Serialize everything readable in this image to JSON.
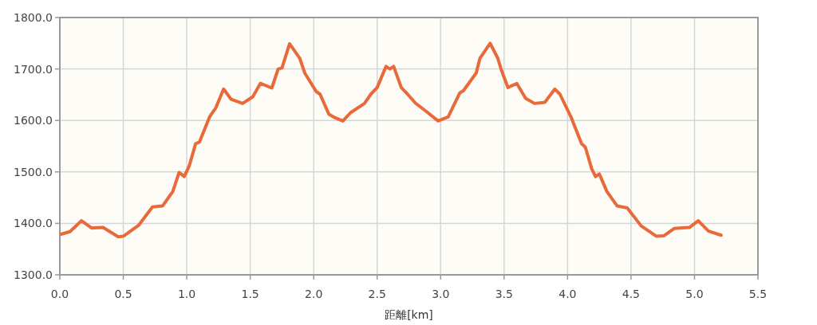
{
  "chart_data": {
    "type": "line",
    "xlabel": "距離[km]",
    "x": [
      0.01,
      0.08,
      0.17,
      0.25,
      0.34,
      0.46,
      0.5,
      0.62,
      0.73,
      0.81,
      0.89,
      0.94,
      0.98,
      1.02,
      1.07,
      1.1,
      1.18,
      1.23,
      1.29,
      1.35,
      1.44,
      1.52,
      1.58,
      1.67,
      1.72,
      1.75,
      1.81,
      1.89,
      1.93,
      2.02,
      2.05,
      2.12,
      2.17,
      2.23,
      2.29,
      2.4,
      2.45,
      2.5,
      2.57,
      2.6,
      2.63,
      2.69,
      2.74,
      2.8,
      2.89,
      2.98,
      3.06,
      3.15,
      3.18,
      3.28,
      3.31,
      3.39,
      3.45,
      3.48,
      3.53,
      3.6,
      3.67,
      3.74,
      3.82,
      3.9,
      3.94,
      4.03,
      4.11,
      4.14,
      4.19,
      4.22,
      4.25,
      4.31,
      4.39,
      4.47,
      4.58,
      4.7,
      4.76,
      4.84,
      4.96,
      5.03,
      5.11,
      5.21
    ],
    "series": [
      {
        "color": "#e8693a",
        "values": [
          1379,
          1384,
          1405,
          1391,
          1392,
          1374,
          1375,
          1396,
          1432,
          1434,
          1462,
          1499,
          1491,
          1512,
          1555,
          1558,
          1607,
          1625,
          1661,
          1641,
          1633,
          1646,
          1672,
          1663,
          1700,
          1702,
          1749,
          1721,
          1692,
          1656,
          1651,
          1612,
          1605,
          1599,
          1615,
          1633,
          1651,
          1664,
          1705,
          1700,
          1705,
          1664,
          1651,
          1634,
          1617,
          1599,
          1607,
          1653,
          1658,
          1692,
          1721,
          1750,
          1721,
          1697,
          1664,
          1672,
          1643,
          1633,
          1635,
          1661,
          1651,
          1605,
          1555,
          1548,
          1506,
          1491,
          1496,
          1462,
          1434,
          1430,
          1395,
          1375,
          1376,
          1390,
          1392,
          1405,
          1385,
          1377
        ]
      }
    ],
    "xlim": [
      0,
      5.5
    ],
    "ylim": [
      1300,
      1800
    ],
    "xticks": [
      {
        "value": 0,
        "label": "0.0"
      },
      {
        "value": 0.5,
        "label": "0.5"
      },
      {
        "value": 1,
        "label": "1.0"
      },
      {
        "value": 1.5,
        "label": "1.5"
      },
      {
        "value": 2,
        "label": "2.0"
      },
      {
        "value": 2.5,
        "label": "2.5"
      },
      {
        "value": 3,
        "label": "3.0"
      },
      {
        "value": 3.5,
        "label": "3.5"
      },
      {
        "value": 4,
        "label": "4.0"
      },
      {
        "value": 4.5,
        "label": "4.5"
      },
      {
        "value": 5,
        "label": "5.0"
      },
      {
        "value": 5.5,
        "label": "5.5"
      }
    ],
    "yticks": [
      {
        "value": 1300,
        "label": "1300.0"
      },
      {
        "value": 1400,
        "label": "1400.0"
      },
      {
        "value": 1500,
        "label": "1500.0"
      },
      {
        "value": 1600,
        "label": "1600.0"
      },
      {
        "value": 1700,
        "label": "1700.0"
      },
      {
        "value": 1800,
        "label": "1800.0"
      }
    ],
    "grid": true
  }
}
